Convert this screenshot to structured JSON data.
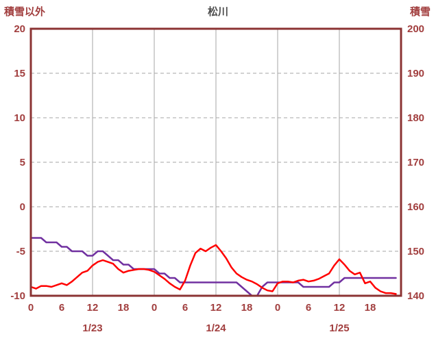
{
  "header": {
    "left_axis_title": "積雪以外",
    "title": "松川",
    "right_axis_title": "積雪"
  },
  "colors": {
    "axis_text": "#A13E3E",
    "title_text": "#4D4D4D",
    "frame": "#8B3333",
    "grid": "#A6A6A6",
    "temp_line": "#FF0000",
    "snow_line": "#7030A0"
  },
  "chart_data": {
    "type": "line",
    "title": "松川",
    "legend": "none",
    "grid": "on",
    "left_axis": {
      "label": "積雪以外",
      "min": -10,
      "max": 20,
      "ticks": [
        20,
        15,
        10,
        5,
        0,
        -5,
        -10
      ]
    },
    "right_axis": {
      "label": "積雪",
      "min": 140,
      "max": 200,
      "ticks": [
        200,
        190,
        180,
        170,
        160,
        150,
        140
      ]
    },
    "x_axis": {
      "total_hours": 72,
      "tick_step_hours": 6,
      "tick_labels": [
        0,
        6,
        12,
        18,
        0,
        6,
        12,
        18,
        0,
        6,
        12,
        18
      ],
      "days": [
        "1/23",
        "1/24",
        "1/25"
      ],
      "day_label_center_hours": [
        12,
        36,
        60
      ],
      "v_gridline_step_hours": 12
    },
    "series": [
      {
        "data_name": "temp-line",
        "label": "積雪以外",
        "axis": "left",
        "color": "#FF0000",
        "values": [
          -9.0,
          -9.2,
          -8.9,
          -8.9,
          -9.0,
          -8.8,
          -8.6,
          -8.8,
          -8.4,
          -7.9,
          -7.4,
          -7.2,
          -6.6,
          -6.2,
          -6.0,
          -6.2,
          -6.4,
          -7.0,
          -7.4,
          -7.2,
          -7.1,
          -7.0,
          -7.0,
          -7.1,
          -7.3,
          -7.7,
          -8.1,
          -8.6,
          -9.0,
          -9.3,
          -8.3,
          -6.6,
          -5.2,
          -4.7,
          -5.0,
          -4.6,
          -4.3,
          -5.0,
          -5.8,
          -6.8,
          -7.5,
          -7.9,
          -8.2,
          -8.4,
          -8.7,
          -9.1,
          -9.4,
          -9.5,
          -8.6,
          -8.4,
          -8.4,
          -8.5,
          -8.3,
          -8.2,
          -8.4,
          -8.3,
          -8.1,
          -7.8,
          -7.5,
          -6.6,
          -5.9,
          -6.5,
          -7.2,
          -7.6,
          -7.4,
          -8.6,
          -8.4,
          -9.1,
          -9.5,
          -9.7,
          -9.7,
          -9.8
        ]
      },
      {
        "data_name": "snow-line",
        "label": "積雪",
        "axis": "right",
        "color": "#7030A0",
        "values": [
          153,
          153,
          153,
          152,
          152,
          152,
          151,
          151,
          150,
          150,
          150,
          149,
          149,
          150,
          150,
          149,
          148,
          148,
          147,
          147,
          146,
          146,
          146,
          146,
          146,
          145,
          145,
          144,
          144,
          143,
          143,
          143,
          143,
          143,
          143,
          143,
          143,
          143,
          143,
          143,
          143,
          142,
          141,
          140,
          140,
          142,
          143,
          143,
          143,
          143,
          143,
          143,
          143,
          142,
          142,
          142,
          142,
          142,
          142,
          143,
          143,
          144,
          144,
          144,
          144,
          144,
          144,
          144,
          144,
          144,
          144,
          144
        ]
      }
    ]
  }
}
